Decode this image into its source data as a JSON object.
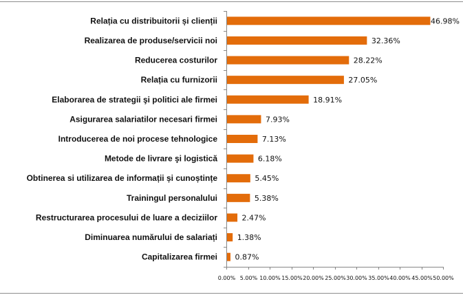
{
  "chart_data": {
    "type": "bar",
    "orientation": "horizontal",
    "title": "",
    "xlabel": "",
    "ylabel": "",
    "xlim": [
      0,
      50
    ],
    "x_tick_labels": [
      "0.00%",
      "5.00%",
      "10.00%",
      "15.00%",
      "20.00%",
      "25.00%",
      "30.00%",
      "35.00%",
      "40.00%",
      "45.00%",
      "50.00%"
    ],
    "grid": false,
    "legend": "none",
    "bar_color": "#E36C0A",
    "categories": [
      "Relația cu distribuitorii și clienții",
      "Realizarea de produse/servicii noi",
      "Reducerea costurilor",
      "Relația cu furnizorii",
      "Elaborarea de strategii şi politici ale firmei",
      "Asigurarea salariatilor necesari firmei",
      "Introducerea de noi procese tehnologice",
      "Metode de livrare şi  logistică",
      "Obtinerea si utilizarea de informații și cunoștințe",
      "Trainingul personalului",
      "Restructurarea  procesului de luare a deciziilor",
      "Diminuarea numărului de salariați",
      "Capitalizarea firmei"
    ],
    "values": [
      46.98,
      32.36,
      28.22,
      27.05,
      18.91,
      7.93,
      7.13,
      6.18,
      5.45,
      5.38,
      2.47,
      1.38,
      0.87
    ],
    "value_labels": [
      "46.98%",
      "32.36%",
      "28.22%",
      "27.05%",
      "18.91%",
      "7.93%",
      "7.13%",
      "6.18%",
      "5.45%",
      "5.38%",
      "2.47%",
      "1.38%",
      "0.87%"
    ]
  }
}
